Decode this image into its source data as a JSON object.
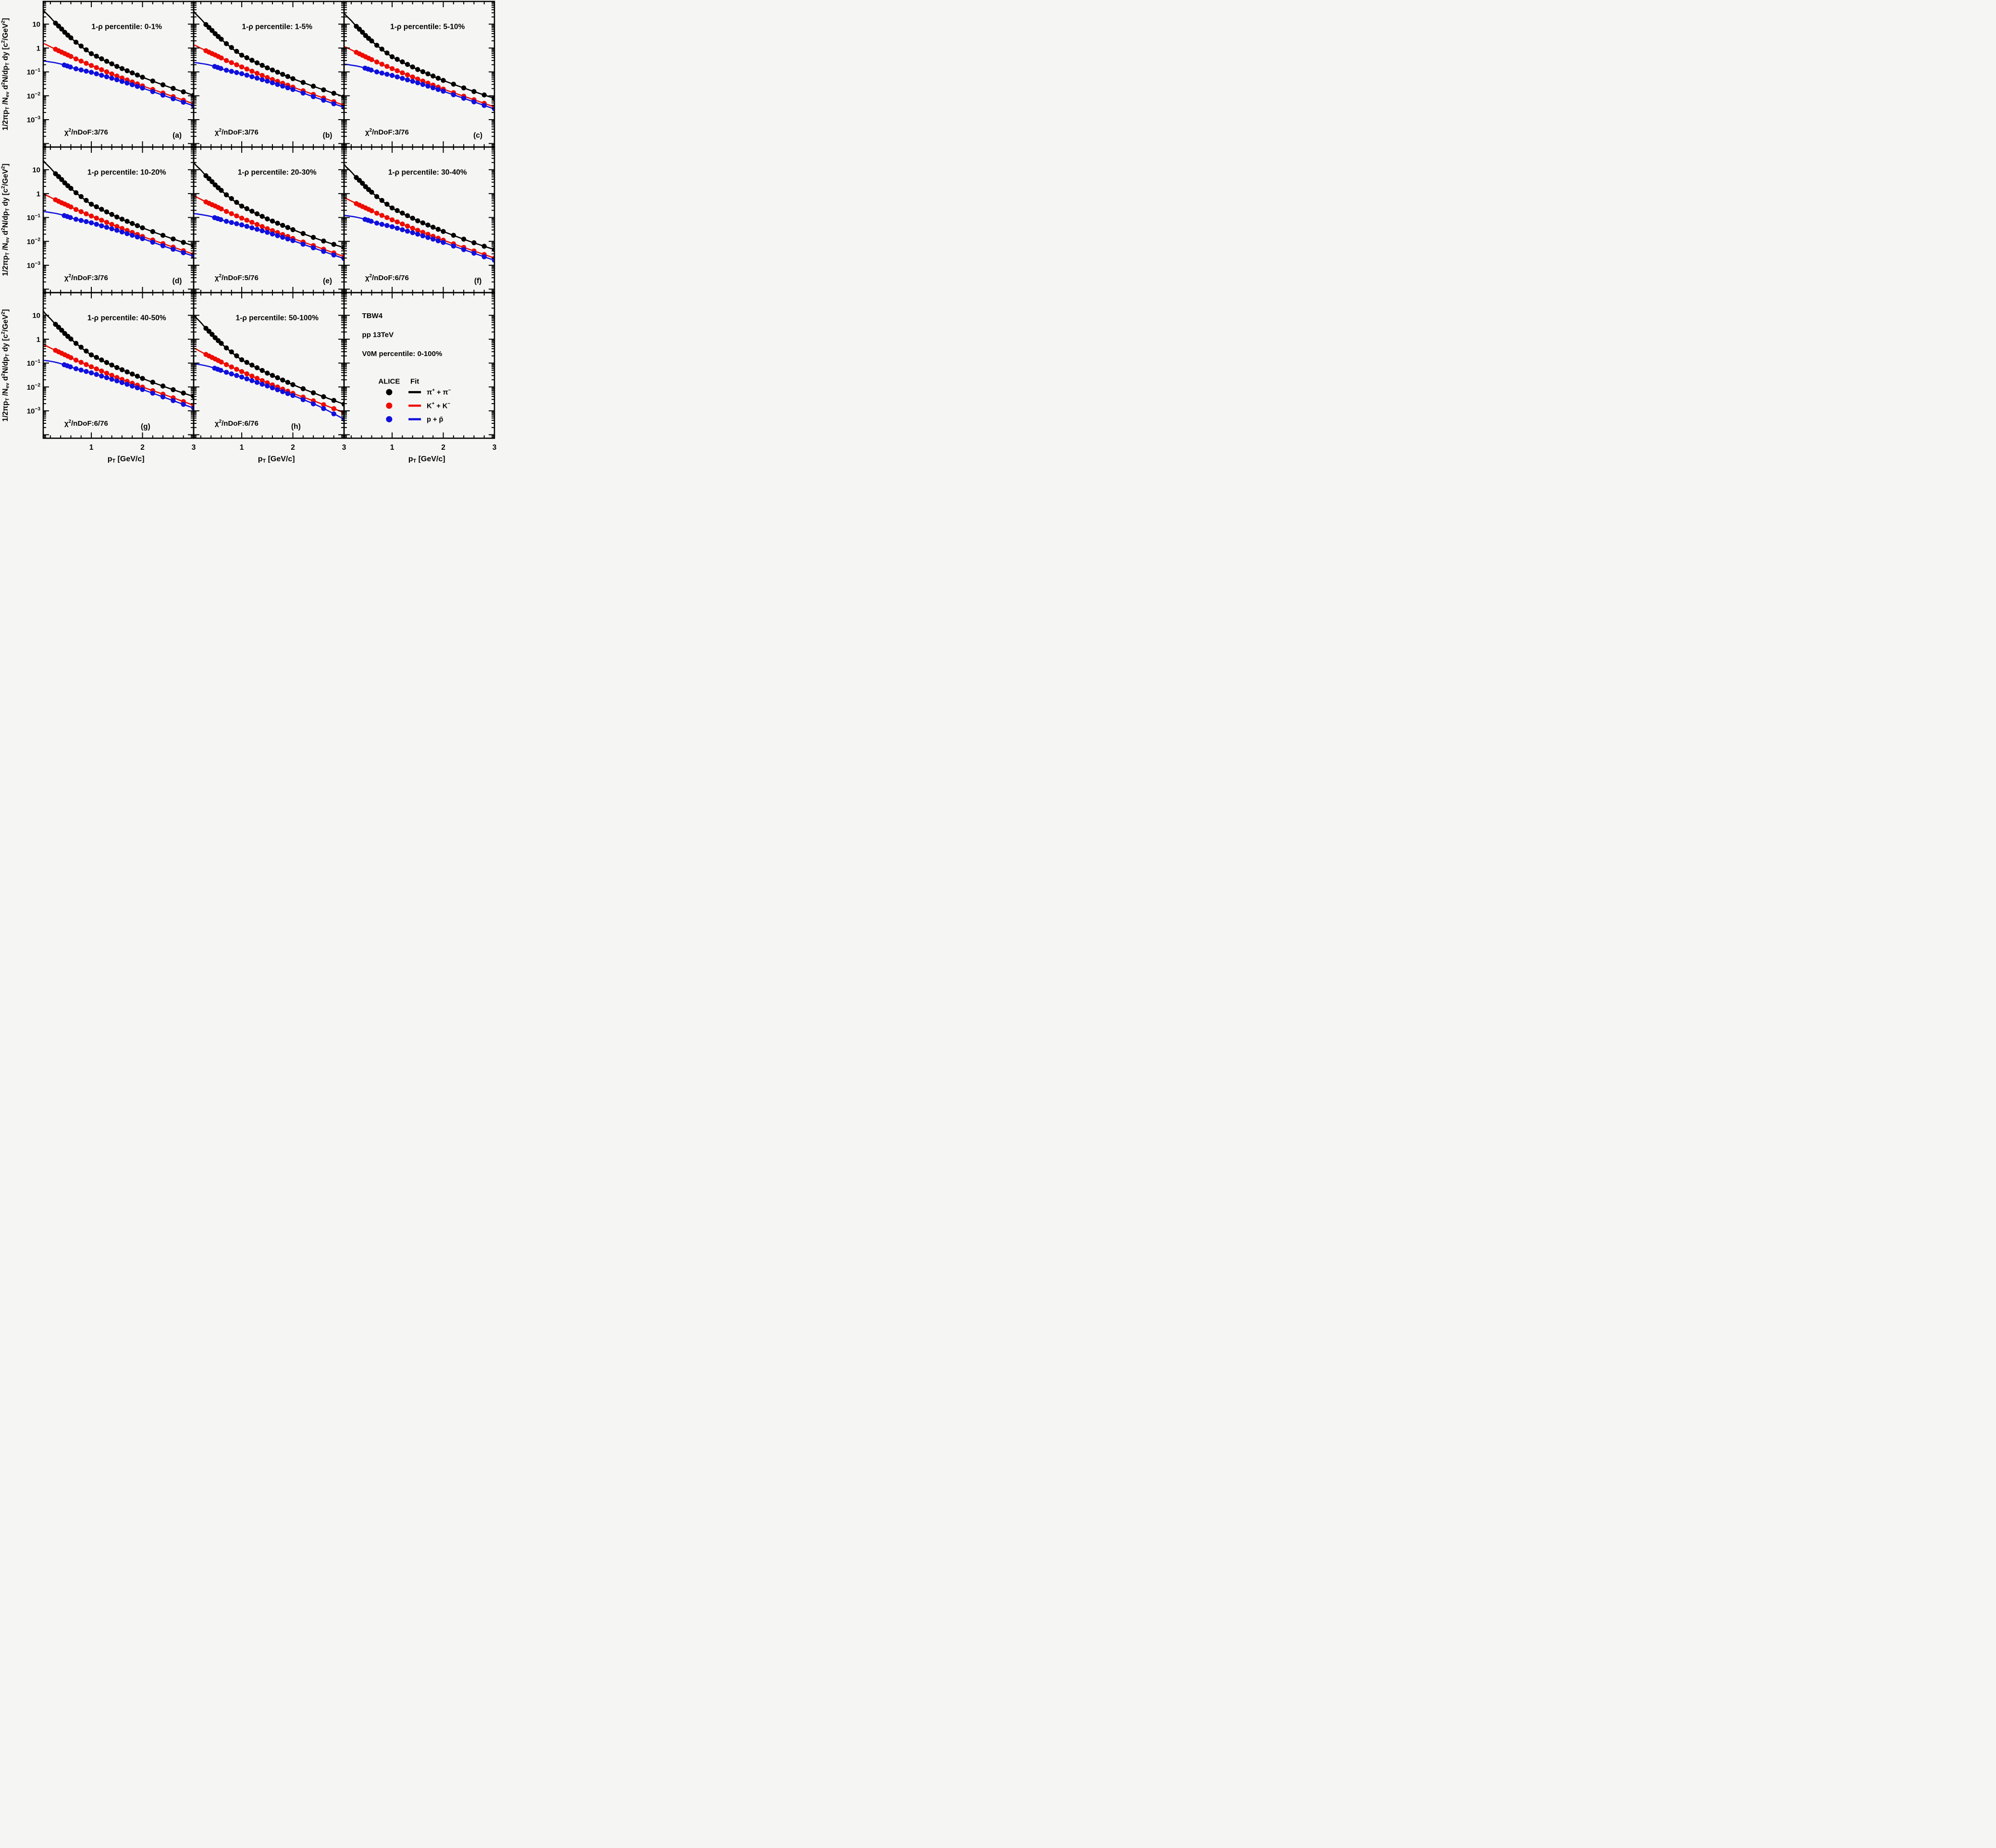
{
  "chart_data": {
    "type": "scatter",
    "title": "Identified particle transverse momentum spectra with TBW4 fits in flattenicity (1-rho) percentile classes",
    "background": "#f5f5f4",
    "frame_color": "#000000",
    "grid": false,
    "xlabel_tokens": [
      [
        "p"
      ],
      [
        "T",
        "sub"
      ],
      [
        " [GeV/c]"
      ]
    ],
    "ylabel_tokens": [
      [
        "1/2",
        "n"
      ],
      [
        "π",
        "n"
      ],
      [
        "p",
        "n"
      ],
      [
        "T",
        "sub"
      ],
      [
        " /N",
        "n"
      ],
      [
        "ev",
        "sub"
      ],
      [
        " d",
        "n"
      ],
      [
        "2",
        "sup"
      ],
      [
        "N/dp",
        "n"
      ],
      [
        "T",
        "sub"
      ],
      [
        " dy [c",
        "n"
      ],
      [
        "2",
        "sup"
      ],
      [
        "/GeV",
        "n"
      ],
      [
        "2",
        "sup"
      ],
      [
        "]",
        "n"
      ]
    ],
    "xlim": [
      0.06,
      3.0
    ],
    "x_major_ticks": [
      1,
      2,
      3
    ],
    "x_minor_step": 0.2,
    "y_log_top_exponent": 1.95,
    "y_decade_labels": [
      1,
      0,
      -1,
      -2,
      -3
    ],
    "x_anchors": [
      0.06,
      0.1,
      0.2,
      0.3,
      0.4,
      0.5,
      0.7,
      1.0,
      1.5,
      2.0,
      2.5,
      3.0
    ],
    "series_meta": [
      {
        "key": "pion",
        "label_tokens": [
          [
            "π"
          ],
          [
            "+",
            "sup"
          ],
          [
            " + π"
          ],
          [
            "−",
            "sup"
          ]
        ],
        "color": "#000000",
        "marker_start": 0.3
      },
      {
        "key": "kaon",
        "label_tokens": [
          [
            "K"
          ],
          [
            "+",
            "sup"
          ],
          [
            " + K"
          ],
          [
            "−",
            "sup"
          ]
        ],
        "color": "#ee0c00",
        "marker_start": 0.3
      },
      {
        "key": "proton",
        "label_tokens": [
          [
            "p + p̄"
          ]
        ],
        "color": "#1010dd",
        "marker_start": 0.47
      }
    ],
    "chi2_prefix": "χ²/nDoF:",
    "panels": [
      {
        "letter": "(a)",
        "title": "1-ρ percentile: 0-1%",
        "chi2": "3/76",
        "letter_x": 0.89,
        "pion": [
          40,
          31,
          19,
          11,
          6.9,
          4.1,
          1.75,
          0.58,
          0.17,
          0.06,
          0.024,
          0.0105
        ],
        "kaon": [
          1.52,
          1.45,
          1.13,
          0.89,
          0.7,
          0.56,
          0.35,
          0.185,
          0.067,
          0.026,
          0.011,
          0.0046
        ],
        "proton": [
          0.28,
          0.28,
          0.26,
          0.24,
          0.215,
          0.185,
          0.135,
          0.096,
          0.047,
          0.021,
          0.0089,
          0.0038
        ]
      },
      {
        "letter": "(b)",
        "title": "1-ρ percentile: 1-5%",
        "chi2": "3/76",
        "letter_x": 0.89,
        "pion": [
          35,
          27,
          16.5,
          9.6,
          6.0,
          3.6,
          1.52,
          0.5,
          0.148,
          0.052,
          0.021,
          0.0091
        ],
        "kaon": [
          1.32,
          1.26,
          0.98,
          0.77,
          0.61,
          0.49,
          0.3,
          0.161,
          0.058,
          0.023,
          0.0096,
          0.004
        ],
        "proton": [
          0.244,
          0.244,
          0.226,
          0.209,
          0.187,
          0.161,
          0.117,
          0.084,
          0.041,
          0.0183,
          0.0077,
          0.0033
        ]
      },
      {
        "letter": "(c)",
        "title": "1-ρ percentile: 5-10%",
        "chi2": "3/76",
        "letter_x": 0.89,
        "pion": [
          29.6,
          22.9,
          14.1,
          8.1,
          5.1,
          3.0,
          1.3,
          0.43,
          0.126,
          0.044,
          0.0178,
          0.0078
        ],
        "kaon": [
          1.12,
          1.07,
          0.84,
          0.66,
          0.52,
          0.41,
          0.26,
          0.137,
          0.05,
          0.019,
          0.0081,
          0.0034
        ],
        "proton": [
          0.207,
          0.207,
          0.192,
          0.178,
          0.159,
          0.137,
          0.1,
          0.071,
          0.035,
          0.0155,
          0.0066,
          0.0028
        ]
      },
      {
        "letter": "(d)",
        "title": "1-ρ percentile: 10-20%",
        "chi2": "3/76",
        "letter_x": 0.89,
        "pion": [
          24.8,
          19.2,
          11.8,
          6.8,
          4.3,
          2.54,
          1.09,
          0.36,
          0.105,
          0.037,
          0.0149,
          0.0065
        ],
        "kaon": [
          0.94,
          0.9,
          0.7,
          0.55,
          0.43,
          0.35,
          0.217,
          0.115,
          0.042,
          0.0161,
          0.0068,
          0.0029
        ],
        "proton": [
          0.174,
          0.174,
          0.161,
          0.149,
          0.133,
          0.115,
          0.084,
          0.06,
          0.029,
          0.013,
          0.0055,
          0.0024
        ]
      },
      {
        "letter": "(e)",
        "title": "1-ρ percentile: 20-30%",
        "chi2": "5/76",
        "letter_x": 0.89,
        "pion": [
          20.4,
          15.8,
          9.7,
          5.6,
          3.5,
          2.09,
          0.89,
          0.3,
          0.087,
          0.031,
          0.0122,
          0.0054
        ],
        "kaon": [
          0.78,
          0.74,
          0.58,
          0.45,
          0.36,
          0.29,
          0.179,
          0.094,
          0.034,
          0.0133,
          0.0056,
          0.0023
        ],
        "proton": [
          0.143,
          0.143,
          0.133,
          0.122,
          0.11,
          0.094,
          0.069,
          0.049,
          0.024,
          0.0107,
          0.0045,
          0.0019
        ]
      },
      {
        "letter": "(f)",
        "title": "1-ρ percentile: 30-40%",
        "chi2": "6/76",
        "letter_x": 0.89,
        "pion": [
          17.2,
          13.3,
          8.2,
          4.7,
          3.0,
          1.76,
          0.75,
          0.25,
          0.073,
          0.026,
          0.0103,
          0.0045
        ],
        "kaon": [
          0.65,
          0.62,
          0.49,
          0.38,
          0.3,
          0.24,
          0.151,
          0.08,
          0.029,
          0.0112,
          0.0047,
          0.002
        ],
        "proton": [
          0.12,
          0.12,
          0.112,
          0.103,
          0.092,
          0.08,
          0.058,
          0.041,
          0.02,
          0.009,
          0.0038,
          0.0016
        ]
      },
      {
        "letter": "(g)",
        "title": "1-ρ percentile: 40-50%",
        "chi2": "6/76",
        "letter_x": 0.68,
        "pion": [
          15.4,
          11.8,
          7.2,
          4.2,
          2.62,
          1.56,
          0.67,
          0.22,
          0.065,
          0.0228,
          0.0091,
          0.004
        ],
        "kaon": [
          0.6,
          0.55,
          0.43,
          0.34,
          0.27,
          0.213,
          0.133,
          0.07,
          0.025,
          0.0099,
          0.0042,
          0.0017
        ],
        "proton": [
          0.13,
          0.128,
          0.119,
          0.108,
          0.095,
          0.081,
          0.058,
          0.039,
          0.018,
          0.0078,
          0.0032,
          0.0013
        ]
      },
      {
        "letter": "(h)",
        "title": "1-ρ percentile: 50-100%",
        "chi2": "6/76",
        "letter_x": 0.68,
        "pion": [
          10.7,
          8.3,
          5.0,
          2.85,
          1.77,
          1.04,
          0.43,
          0.138,
          0.038,
          0.0125,
          0.0047,
          0.0019
        ],
        "kaon": [
          0.41,
          0.39,
          0.3,
          0.23,
          0.18,
          0.142,
          0.086,
          0.044,
          0.0149,
          0.0054,
          0.0022,
          0.00084
        ],
        "proton": [
          0.093,
          0.092,
          0.085,
          0.077,
          0.068,
          0.058,
          0.041,
          0.026,
          0.011,
          0.0044,
          0.0016,
          0.00045
        ]
      }
    ],
    "info_panel": {
      "lines": [
        "TBW4",
        "pp 13TeV",
        "V0M percentile: 0-100%"
      ],
      "legend_headers": [
        "ALICE",
        "Fit"
      ],
      "legend_position": "bottom-right cell"
    }
  }
}
